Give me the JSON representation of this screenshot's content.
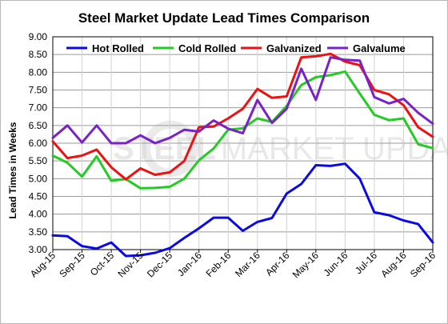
{
  "chart_data": {
    "type": "line",
    "title": "Steel Market Update Lead Times Comparison",
    "ylabel": "Lead Times in Weeks",
    "xlabel": "",
    "ylim": [
      3.0,
      9.0
    ],
    "yticks": [
      "3.00",
      "3.50",
      "4.00",
      "4.50",
      "5.00",
      "5.50",
      "6.00",
      "6.50",
      "7.00",
      "7.50",
      "8.00",
      "8.50",
      "9.00"
    ],
    "x_labels": [
      "Aug-15",
      "Sep-15",
      "Oct-15",
      "Nov-15",
      "Dec-15",
      "Jan-16",
      "Feb-16",
      "Mar-16",
      "Apr-16",
      "May-16",
      "Jun-16",
      "Jul-16",
      "Aug-16",
      "Sep-16"
    ],
    "points_per_month": 2,
    "grid": true,
    "legend": "top",
    "watermark": {
      "bold": "STEEL",
      "light": "MARKET UPDATE"
    },
    "series": [
      {
        "name": "Hot Rolled",
        "color": "#0a0ae6",
        "values": [
          3.4,
          3.38,
          3.1,
          3.03,
          3.2,
          2.82,
          2.84,
          2.91,
          3.04,
          3.33,
          3.6,
          3.9,
          3.9,
          3.53,
          3.78,
          3.89,
          4.58,
          4.85,
          5.38,
          5.36,
          5.42,
          5.0,
          4.05,
          3.97,
          3.82,
          3.72,
          3.2
        ]
      },
      {
        "name": "Cold Rolled",
        "color": "#22cc22",
        "values": [
          5.65,
          5.45,
          5.06,
          5.63,
          4.94,
          4.99,
          4.73,
          4.74,
          4.77,
          5.0,
          5.52,
          5.85,
          6.38,
          6.42,
          6.7,
          6.6,
          7.05,
          7.64,
          7.86,
          7.92,
          8.02,
          7.4,
          6.8,
          6.65,
          6.7,
          5.97,
          5.86
        ]
      },
      {
        "name": "Galvanized",
        "color": "#ee1111",
        "values": [
          6.05,
          5.58,
          5.65,
          5.82,
          5.32,
          4.98,
          5.29,
          5.11,
          5.18,
          5.5,
          6.45,
          6.47,
          6.7,
          6.97,
          7.53,
          7.28,
          7.32,
          8.42,
          8.45,
          8.52,
          8.3,
          8.2,
          7.5,
          7.38,
          7.07,
          6.45,
          6.18
        ]
      },
      {
        "name": "Galvalume",
        "color": "#7a22c8",
        "values": [
          6.15,
          6.5,
          6.02,
          6.5,
          6.0,
          6.0,
          6.22,
          6.0,
          6.15,
          6.38,
          6.33,
          6.64,
          6.41,
          6.28,
          7.22,
          6.57,
          6.97,
          8.1,
          7.22,
          8.42,
          8.35,
          8.33,
          7.3,
          7.12,
          7.25,
          6.86,
          6.55
        ]
      }
    ]
  }
}
